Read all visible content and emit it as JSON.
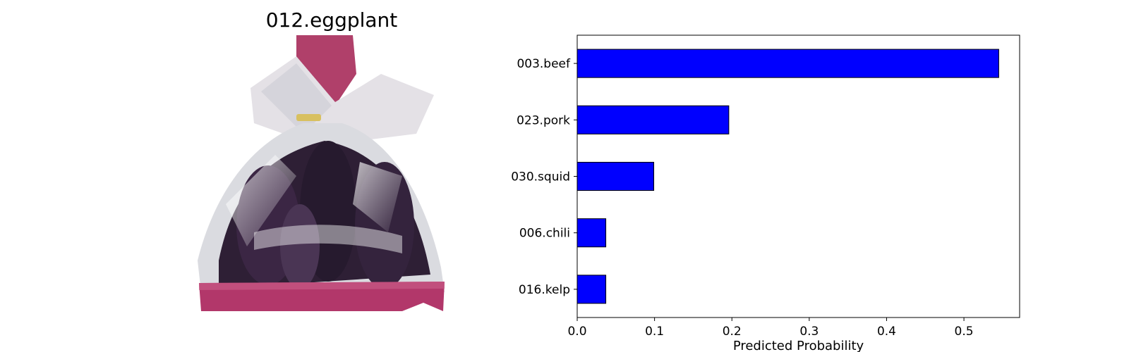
{
  "image_panel": {
    "title": "012.eggplant",
    "photo_subject": "eggplant-bag-photo"
  },
  "chart_data": {
    "type": "bar",
    "orientation": "horizontal",
    "categories": [
      "003.beef",
      "023.pork",
      "030.squid",
      "006.chili",
      "016.kelp"
    ],
    "values": [
      0.545,
      0.196,
      0.099,
      0.037,
      0.037
    ],
    "xlabel": "Predicted Probability",
    "ylabel": "",
    "xlim": [
      0,
      0.572
    ],
    "xticks": [
      "0.0",
      "0.1",
      "0.2",
      "0.3",
      "0.4",
      "0.5"
    ],
    "bar_color": "#0000ff",
    "bar_edge_color": "#000000",
    "grid": false
  }
}
